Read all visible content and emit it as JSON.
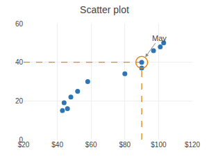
{
  "chart_data": {
    "type": "scatter",
    "title": "Scatter plot",
    "x": [
      43,
      44,
      46,
      48,
      52,
      58,
      80,
      90,
      90,
      97,
      101,
      103
    ],
    "values": [
      15,
      19,
      16,
      22,
      25,
      30,
      34,
      40,
      37,
      46,
      48,
      50
    ],
    "color": "#2e75b6",
    "xlim": [
      20,
      120
    ],
    "ylim": [
      0,
      60
    ],
    "xticks": [
      {
        "value": 20,
        "label": "$20"
      },
      {
        "value": 40,
        "label": "$40"
      },
      {
        "value": 60,
        "label": "$60"
      },
      {
        "value": 80,
        "label": "$80"
      },
      {
        "value": 100,
        "label": "$100"
      },
      {
        "value": 120,
        "label": "$120"
      }
    ],
    "yticks": [
      0,
      20,
      40,
      60
    ],
    "grid": true,
    "annotations": [
      {
        "text": "May",
        "x": 90,
        "y": 40,
        "color": "#E8820C"
      }
    ]
  }
}
